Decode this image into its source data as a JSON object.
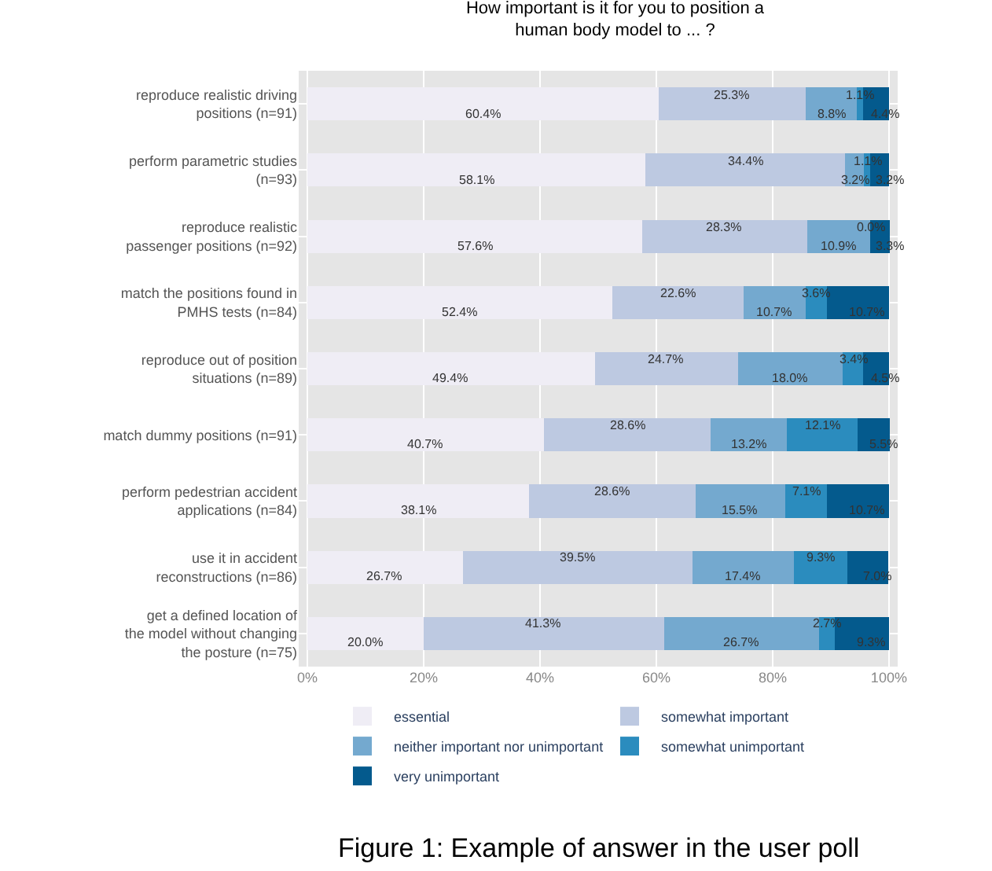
{
  "chart_data": {
    "type": "bar",
    "orientation": "horizontal",
    "stacked": true,
    "title": "How important is it for you to position a human body model to ... ?",
    "categories": [
      "reproduce realistic driving positions (n=91)",
      "perform parametric studies (n=93)",
      "reproduce realistic passenger positions (n=92)",
      "match the positions found in PMHS tests (n=84)",
      "reproduce out of position situations (n=89)",
      "match dummy positions (n=91)",
      "perform pedestrian accident applications (n=84)",
      "use it in accident reconstructions (n=86)",
      "get a defined location of the model without changing the posture (n=75)"
    ],
    "series": [
      {
        "name": "essential",
        "color": "#efedf5",
        "values": [
          60.4,
          58.1,
          57.6,
          52.4,
          49.4,
          40.7,
          38.1,
          26.7,
          20.0
        ],
        "value_labels": [
          "60.4%",
          "58.1%",
          "57.6%",
          "52.4%",
          "49.4%",
          "40.7%",
          "38.1%",
          "26.7%",
          "20.0%"
        ]
      },
      {
        "name": "somewhat important",
        "color": "#bdc9e1",
        "values": [
          25.3,
          34.4,
          28.3,
          22.6,
          24.7,
          28.6,
          28.6,
          39.5,
          41.3
        ],
        "value_labels": [
          "25.3%",
          "34.4%",
          "28.3%",
          "22.6%",
          "24.7%",
          "28.6%",
          "28.6%",
          "39.5%",
          "41.3%"
        ]
      },
      {
        "name": "neither important nor unimportant",
        "color": "#74a9cf",
        "values": [
          8.8,
          3.2,
          10.9,
          10.7,
          18.0,
          13.2,
          15.5,
          17.4,
          26.7
        ],
        "value_labels": [
          "8.8%",
          "3.2%",
          "10.9%",
          "10.7%",
          "18.0%",
          "13.2%",
          "15.5%",
          "17.4%",
          "26.7%"
        ]
      },
      {
        "name": "somewhat unimportant",
        "color": "#2b8cbe",
        "values": [
          1.1,
          1.1,
          0.0,
          3.6,
          3.4,
          12.1,
          7.1,
          9.3,
          2.7
        ],
        "value_labels": [
          "1.1%",
          "1.1%",
          "0.0%",
          "3.6%",
          "3.4%",
          "12.1%",
          "7.1%",
          "9.3%",
          "2.7%"
        ]
      },
      {
        "name": "very unimportant",
        "color": "#045a8d",
        "values": [
          4.4,
          3.2,
          3.3,
          10.7,
          4.5,
          5.5,
          10.7,
          7.0,
          9.3
        ],
        "value_labels": [
          "4.4%",
          "3.2%",
          "3.3%",
          "10.7%",
          "4.5%",
          "5.5%",
          "10.7%",
          "7.0%",
          "9.3%"
        ]
      }
    ],
    "xlim": [
      -1.5,
      101.5
    ],
    "xticks": [
      {
        "value": 0,
        "label": "0%"
      },
      {
        "value": 20,
        "label": "20%"
      },
      {
        "value": 40,
        "label": "40%"
      },
      {
        "value": 60,
        "label": "60%"
      },
      {
        "value": 80,
        "label": "80%"
      },
      {
        "value": 100,
        "label": "100%"
      }
    ],
    "grid": true,
    "legend": "bottom",
    "annotations": [
      "Figure 1: Example of answer in the user poll"
    ]
  }
}
